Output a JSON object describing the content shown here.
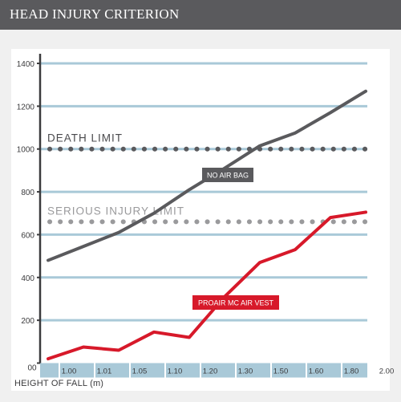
{
  "header": {
    "title": "HEAD INJURY CRITERION"
  },
  "chart_data": {
    "type": "line",
    "title": "HEAD INJURY CRITERION",
    "xlabel": "HEIGHT OF FALL (m)",
    "ylabel": "",
    "categories": [
      "1.00",
      "1.01",
      "1.05",
      "1.10",
      "1.20",
      "1.30",
      "1.50",
      "1.60",
      "1.80",
      "2.00"
    ],
    "origin_label": "00",
    "y_ticks": [
      0,
      200,
      400,
      600,
      800,
      1000,
      1200,
      1400
    ],
    "ylim": [
      0,
      1450
    ],
    "grid": true,
    "series": [
      {
        "name": "NO AIR BAG",
        "color": "#5a5a5d",
        "label_bg": "#5a5a5d",
        "values": [
          480,
          545,
          610,
          700,
          810,
          910,
          1015,
          1075,
          1170,
          1270
        ]
      },
      {
        "name": "PROAIR MC AIR VEST",
        "color": "#d7192a",
        "label_bg": "#d7192a",
        "values": [
          20,
          75,
          60,
          145,
          120,
          310,
          470,
          530,
          680,
          705
        ]
      }
    ],
    "limits": [
      {
        "label": "DEATH LIMIT",
        "value": 1000,
        "color": "#5a5a5d",
        "text_color": "#4a4a4d"
      },
      {
        "label": "SERIOUS INJURY LIMIT",
        "value": 660,
        "color": "#9a9a9c",
        "text_color": "#9a9a9c"
      }
    ],
    "grid_color": "#a9c9d8",
    "axis_color": "#3b3b3d"
  }
}
